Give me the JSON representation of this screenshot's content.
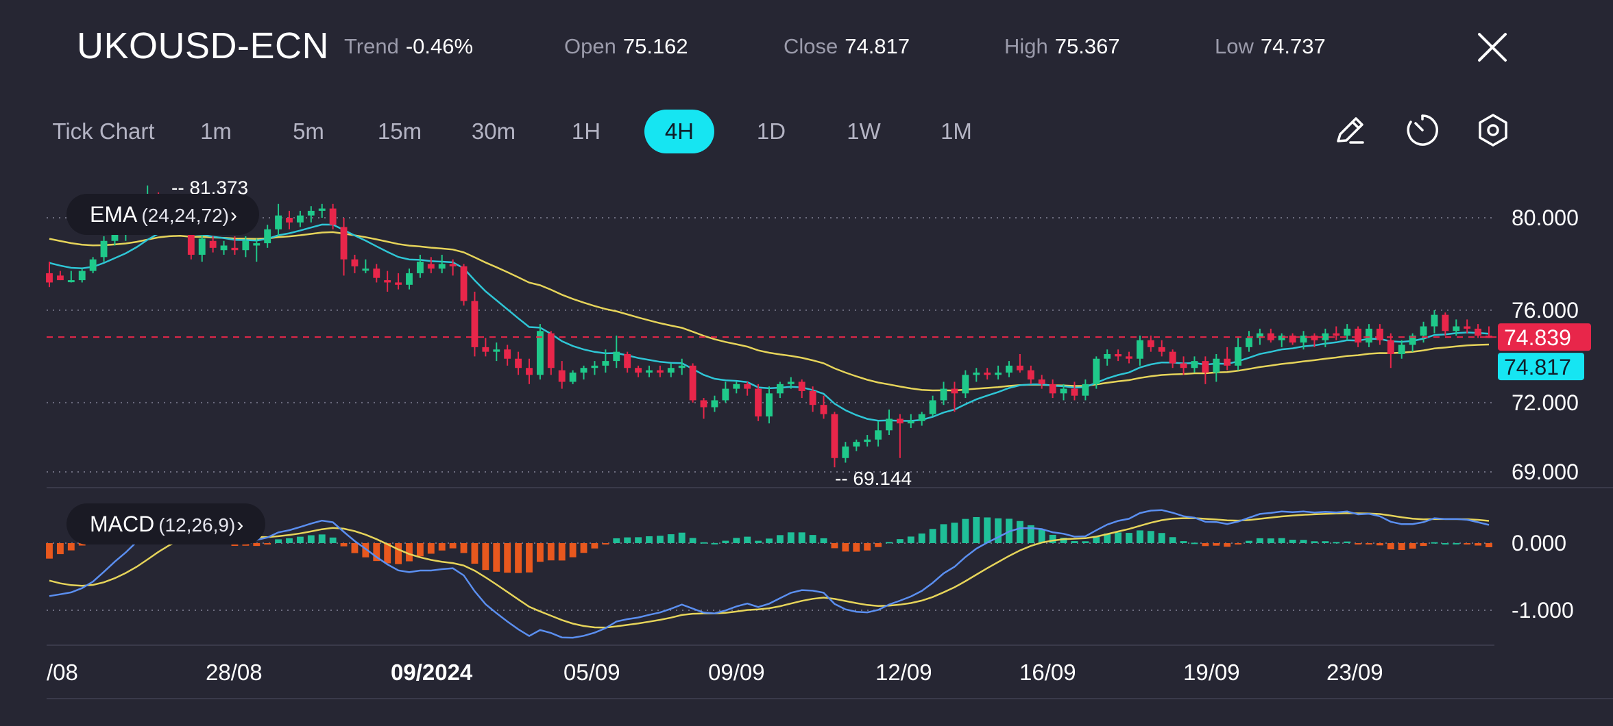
{
  "header": {
    "symbol": "UKOUSD-ECN",
    "trend_label": "Trend",
    "trend_value": "-0.46%",
    "open_label": "Open",
    "open_value": "75.162",
    "close_label": "Close",
    "close_value": "74.817",
    "high_label": "High",
    "high_value": "75.367",
    "low_label": "Low",
    "low_value": "74.737"
  },
  "timeframes": {
    "items": [
      "Tick Chart",
      "1m",
      "5m",
      "15m",
      "30m",
      "1H",
      "4H",
      "1D",
      "1W",
      "1M"
    ],
    "active": "4H"
  },
  "tools": [
    "pencil-icon",
    "timer-icon",
    "settings-hexagon-icon"
  ],
  "indicators": {
    "ema_label": "EMA",
    "ema_params": "(24,24,72)",
    "macd_label": "MACD",
    "macd_params": "(12,26,9)"
  },
  "colors": {
    "background": "#262633",
    "up": "#1fc98a",
    "down": "#e8264a",
    "ema_fast": "#2fc6d6",
    "ema_slow": "#e6d45a",
    "macd_line": "#5b8ff0",
    "signal_line": "#e6d45a",
    "hist_pos": "#1fbf98",
    "hist_neg": "#e8581e",
    "accent": "#16e5f2"
  },
  "chart_data": {
    "type": "candlestick",
    "price_axis": {
      "ticks": [
        "80.000",
        "76.000",
        "72.000",
        "69.000"
      ],
      "tick_values": [
        80,
        76,
        72,
        69
      ],
      "range": [
        68.6,
        81.7
      ]
    },
    "macd_axis": {
      "ticks": [
        "0.000",
        "-1.000"
      ],
      "tick_values": [
        0,
        -1
      ],
      "range": [
        -1.45,
        0.78
      ]
    },
    "x_ticks": [
      "/08",
      "28/08",
      "09/2024",
      "05/09",
      "09/09",
      "12/09",
      "16/09",
      "19/09",
      "23/09"
    ],
    "x_tick_bold": "09/2024",
    "current_price": {
      "value": 74.839,
      "label": "74.839"
    },
    "close_price": {
      "value": 74.817,
      "label": "74.817"
    },
    "max_marker": {
      "value": 81.373,
      "label": "81.373"
    },
    "min_marker": {
      "value": 69.144,
      "label": "69.144"
    },
    "candles_approx": [
      [
        77.6,
        78.1,
        77.0,
        77.2
      ],
      [
        77.5,
        77.7,
        77.3,
        77.3
      ],
      [
        77.3,
        77.7,
        77.2,
        77.3
      ],
      [
        77.3,
        77.8,
        77.2,
        77.7
      ],
      [
        77.7,
        78.3,
        77.6,
        78.2
      ],
      [
        78.3,
        79.2,
        78.1,
        79.0
      ],
      [
        79.0,
        79.8,
        78.8,
        79.4
      ],
      [
        79.3,
        79.8,
        79.0,
        79.6
      ],
      [
        79.6,
        80.4,
        79.4,
        80.2
      ],
      [
        80.2,
        81.4,
        80.0,
        80.8
      ],
      [
        80.9,
        81.1,
        80.3,
        80.8
      ],
      [
        80.7,
        80.9,
        79.9,
        80.1
      ],
      [
        80.1,
        80.3,
        79.3,
        79.6
      ],
      [
        79.6,
        79.8,
        78.2,
        78.4
      ],
      [
        78.4,
        79.3,
        78.1,
        79.1
      ],
      [
        79.0,
        79.2,
        78.5,
        78.7
      ],
      [
        78.6,
        79.0,
        78.4,
        78.8
      ],
      [
        78.7,
        79.2,
        78.4,
        78.6
      ],
      [
        78.6,
        79.2,
        78.3,
        79.0
      ],
      [
        78.8,
        79.1,
        78.1,
        78.9
      ],
      [
        78.9,
        79.7,
        78.7,
        79.5
      ],
      [
        79.5,
        80.6,
        79.2,
        80.1
      ],
      [
        80.0,
        80.3,
        79.5,
        79.8
      ],
      [
        79.8,
        80.3,
        79.6,
        80.1
      ],
      [
        80.1,
        80.5,
        79.8,
        80.3
      ],
      [
        80.3,
        80.6,
        80.0,
        80.4
      ],
      [
        80.4,
        80.6,
        79.5,
        79.7
      ],
      [
        79.6,
        80.0,
        77.5,
        78.2
      ],
      [
        78.2,
        78.4,
        77.6,
        77.9
      ],
      [
        77.8,
        78.2,
        77.6,
        77.8
      ],
      [
        77.8,
        78.0,
        77.2,
        77.4
      ],
      [
        77.3,
        77.7,
        76.8,
        77.2
      ],
      [
        77.2,
        77.6,
        76.9,
        77.1
      ],
      [
        77.1,
        77.8,
        76.9,
        77.6
      ],
      [
        77.6,
        78.4,
        77.4,
        78.1
      ],
      [
        78.0,
        78.3,
        77.6,
        77.8
      ],
      [
        77.8,
        78.4,
        77.6,
        78.0
      ],
      [
        78.0,
        78.2,
        77.5,
        77.9
      ],
      [
        77.9,
        78.0,
        76.2,
        76.4
      ],
      [
        76.4,
        76.8,
        74.0,
        74.4
      ],
      [
        74.4,
        74.8,
        74.0,
        74.2
      ],
      [
        74.2,
        74.6,
        73.8,
        74.3
      ],
      [
        74.3,
        74.5,
        73.6,
        73.9
      ],
      [
        73.9,
        74.2,
        73.2,
        73.5
      ],
      [
        73.5,
        73.9,
        72.8,
        73.2
      ],
      [
        73.2,
        75.4,
        73.0,
        75.1
      ],
      [
        75.0,
        75.1,
        73.2,
        73.5
      ],
      [
        73.4,
        73.8,
        72.6,
        72.9
      ],
      [
        72.9,
        73.4,
        72.8,
        73.3
      ],
      [
        73.3,
        73.6,
        73.0,
        73.5
      ],
      [
        73.5,
        73.8,
        73.2,
        73.6
      ],
      [
        73.6,
        74.3,
        73.3,
        73.8
      ],
      [
        73.8,
        74.9,
        73.5,
        74.2
      ],
      [
        74.1,
        74.2,
        73.3,
        73.5
      ],
      [
        73.5,
        73.6,
        73.1,
        73.3
      ],
      [
        73.3,
        73.6,
        73.1,
        73.4
      ],
      [
        73.4,
        73.6,
        73.1,
        73.3
      ],
      [
        73.3,
        73.7,
        73.1,
        73.5
      ],
      [
        73.5,
        73.9,
        73.2,
        73.6
      ],
      [
        73.6,
        73.7,
        72.0,
        72.1
      ],
      [
        72.1,
        72.2,
        71.3,
        71.8
      ],
      [
        71.8,
        72.3,
        71.6,
        72.1
      ],
      [
        72.1,
        72.9,
        72.0,
        72.6
      ],
      [
        72.6,
        72.9,
        72.4,
        72.8
      ],
      [
        72.8,
        72.9,
        72.3,
        72.6
      ],
      [
        72.6,
        72.8,
        71.2,
        71.4
      ],
      [
        71.4,
        72.7,
        71.1,
        72.4
      ],
      [
        72.4,
        72.9,
        72.2,
        72.8
      ],
      [
        72.8,
        73.1,
        72.6,
        72.9
      ],
      [
        72.9,
        73.0,
        72.2,
        72.5
      ],
      [
        72.5,
        72.7,
        71.6,
        71.9
      ],
      [
        71.9,
        72.3,
        71.3,
        71.5
      ],
      [
        71.5,
        71.6,
        69.2,
        69.6
      ],
      [
        69.6,
        70.3,
        69.4,
        70.1
      ],
      [
        70.1,
        70.4,
        69.9,
        70.3
      ],
      [
        70.3,
        70.6,
        70.1,
        70.4
      ],
      [
        70.4,
        71.2,
        70.1,
        70.8
      ],
      [
        70.8,
        71.7,
        70.6,
        71.3
      ],
      [
        71.3,
        71.5,
        69.6,
        71.1
      ],
      [
        71.1,
        71.5,
        70.9,
        71.2
      ],
      [
        71.2,
        71.6,
        71.0,
        71.5
      ],
      [
        71.5,
        72.3,
        71.4,
        72.1
      ],
      [
        72.1,
        72.9,
        71.9,
        72.6
      ],
      [
        72.6,
        72.9,
        71.6,
        72.4
      ],
      [
        72.4,
        73.4,
        72.2,
        73.2
      ],
      [
        73.2,
        73.5,
        72.9,
        73.3
      ],
      [
        73.3,
        73.5,
        73.0,
        73.2
      ],
      [
        73.2,
        73.6,
        73.0,
        73.3
      ],
      [
        73.3,
        73.8,
        73.1,
        73.6
      ],
      [
        73.6,
        74.1,
        73.3,
        73.4
      ],
      [
        73.4,
        73.6,
        72.8,
        73.0
      ],
      [
        73.0,
        73.2,
        72.6,
        72.8
      ],
      [
        72.8,
        73.0,
        72.2,
        72.4
      ],
      [
        72.4,
        72.8,
        72.1,
        72.6
      ],
      [
        72.6,
        72.9,
        72.1,
        72.3
      ],
      [
        72.3,
        73.0,
        72.1,
        72.8
      ],
      [
        72.8,
        74.0,
        72.6,
        73.9
      ],
      [
        73.9,
        74.3,
        73.6,
        74.1
      ],
      [
        74.1,
        74.3,
        73.8,
        74.0
      ],
      [
        74.0,
        74.2,
        73.7,
        73.9
      ],
      [
        73.9,
        74.9,
        73.6,
        74.7
      ],
      [
        74.7,
        74.9,
        74.2,
        74.4
      ],
      [
        74.4,
        74.7,
        74.0,
        74.2
      ],
      [
        74.2,
        74.3,
        73.5,
        73.7
      ],
      [
        73.7,
        74.0,
        73.2,
        73.5
      ],
      [
        73.5,
        74.0,
        73.3,
        73.8
      ],
      [
        73.8,
        74.0,
        72.8,
        73.3
      ],
      [
        73.3,
        74.1,
        72.9,
        73.9
      ],
      [
        73.9,
        74.4,
        73.4,
        73.6
      ],
      [
        73.6,
        74.8,
        73.4,
        74.4
      ],
      [
        74.4,
        75.1,
        74.2,
        74.8
      ],
      [
        74.8,
        75.2,
        74.5,
        75.0
      ],
      [
        75.0,
        75.2,
        74.6,
        74.7
      ],
      [
        74.7,
        75.0,
        74.4,
        74.9
      ],
      [
        74.9,
        75.0,
        74.5,
        74.6
      ],
      [
        74.6,
        75.1,
        74.3,
        74.9
      ],
      [
        74.9,
        75.0,
        74.4,
        74.7
      ],
      [
        74.7,
        75.2,
        74.4,
        75.0
      ],
      [
        75.0,
        75.3,
        74.7,
        74.9
      ],
      [
        74.9,
        75.4,
        74.7,
        75.2
      ],
      [
        75.2,
        75.3,
        74.4,
        74.6
      ],
      [
        74.6,
        75.4,
        74.4,
        75.2
      ],
      [
        75.2,
        75.4,
        74.5,
        74.7
      ],
      [
        74.7,
        75.0,
        73.5,
        74.1
      ],
      [
        74.1,
        74.7,
        73.9,
        74.5
      ],
      [
        74.5,
        75.0,
        74.2,
        74.9
      ],
      [
        74.9,
        75.5,
        74.6,
        75.3
      ],
      [
        75.3,
        76.0,
        75.0,
        75.8
      ],
      [
        75.8,
        75.9,
        74.9,
        75.1
      ],
      [
        75.1,
        75.6,
        74.9,
        75.3
      ],
      [
        75.3,
        75.6,
        75.0,
        75.2
      ],
      [
        75.2,
        75.4,
        74.8,
        74.9
      ],
      [
        74.9,
        75.3,
        74.8,
        74.8
      ]
    ]
  }
}
